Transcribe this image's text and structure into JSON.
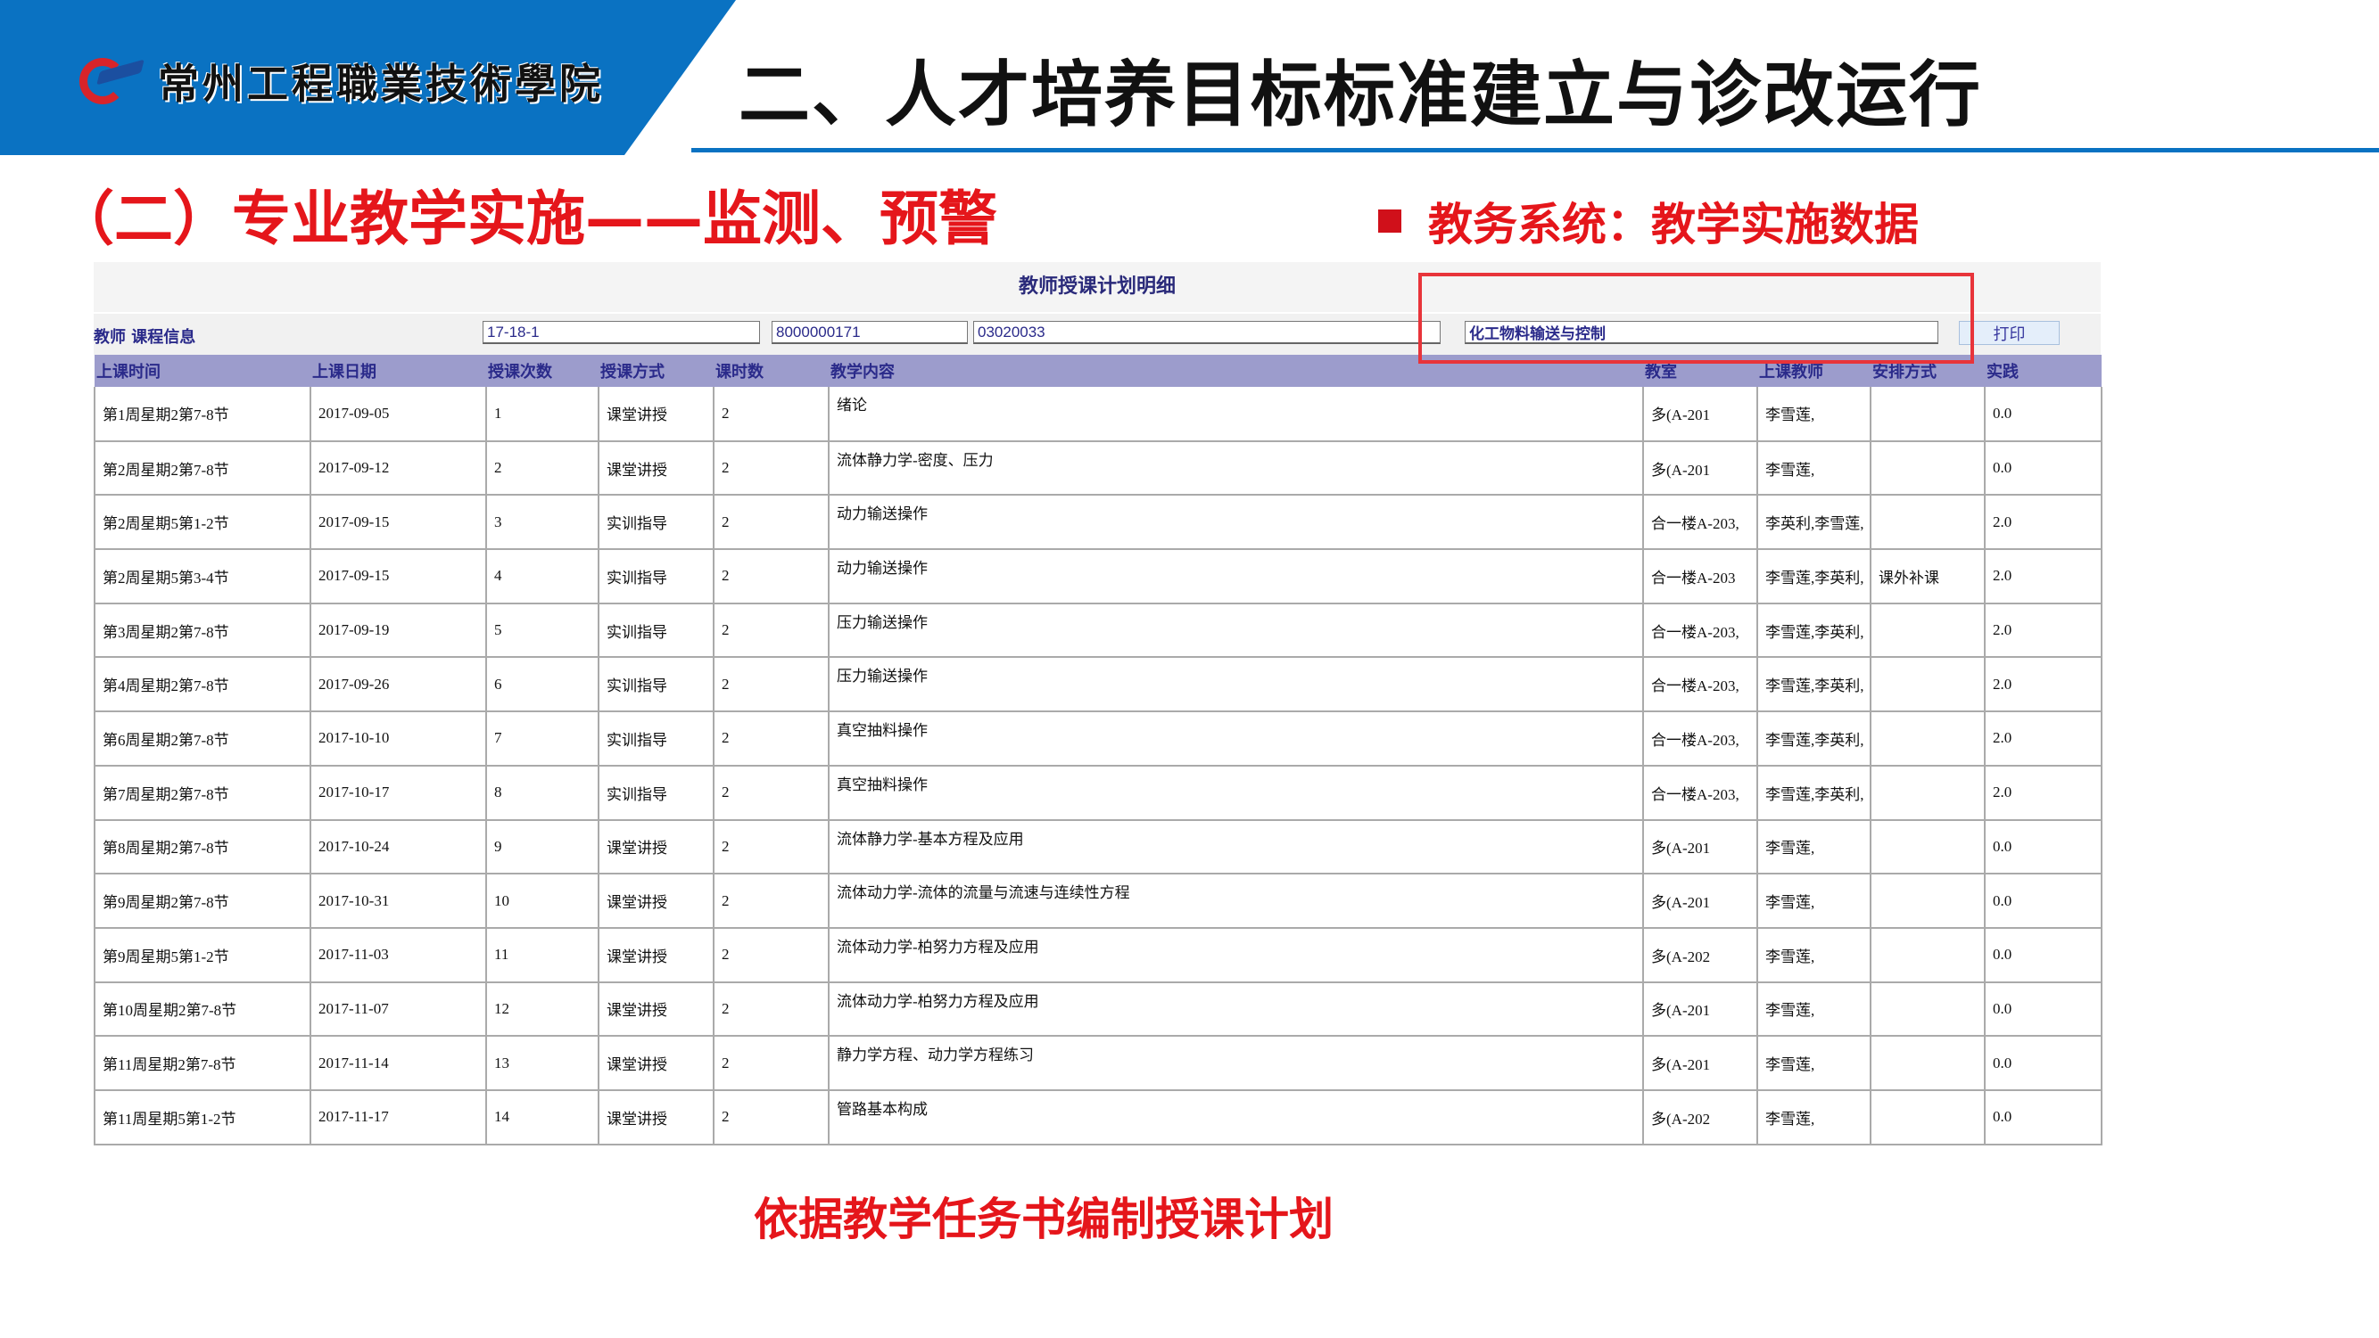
{
  "header": {
    "logo_text": "常州工程職業技術學院",
    "title": "二、人才培养目标标准建立与诊改运行"
  },
  "subtitle": "（二）专业教学实施——监测、预警",
  "side_label": "教务系统：教学实施数据",
  "colors": {
    "brand_blue": "#0a72c2",
    "accent_red": "#e5161b",
    "table_header": "#9c9ccc"
  },
  "panel": {
    "title": "教师授课计划明细",
    "info_label": "教师 课程信息",
    "term": "17-18-1",
    "teacher_id": "8000000171",
    "course_code": "03020033",
    "course_name": "化工物料输送与控制",
    "print_label": "打印"
  },
  "table": {
    "headers": [
      "上课时间",
      "上课日期",
      "授课次数",
      "授课方式",
      "课时数",
      "教学内容",
      "教室",
      "上课教师",
      "安排方式",
      "实践"
    ],
    "rows": [
      [
        "第1周星期2第7-8节",
        "2017-09-05",
        "1",
        "课堂讲授",
        "2",
        "绪论",
        "多(A-201",
        "李雪莲,",
        "",
        "0.0"
      ],
      [
        "第2周星期2第7-8节",
        "2017-09-12",
        "2",
        "课堂讲授",
        "2",
        "流体静力学-密度、压力",
        "多(A-201",
        "李雪莲,",
        "",
        "0.0"
      ],
      [
        "第2周星期5第1-2节",
        "2017-09-15",
        "3",
        "实训指导",
        "2",
        "动力输送操作",
        "合一楼A-203,",
        "李英利,李雪莲,",
        "",
        "2.0"
      ],
      [
        "第2周星期5第3-4节",
        "2017-09-15",
        "4",
        "实训指导",
        "2",
        "动力输送操作",
        "合一楼A-203",
        "李雪莲,李英利,",
        "课外补课",
        "2.0"
      ],
      [
        "第3周星期2第7-8节",
        "2017-09-19",
        "5",
        "实训指导",
        "2",
        "压力输送操作",
        "合一楼A-203,",
        "李雪莲,李英利,",
        "",
        "2.0"
      ],
      [
        "第4周星期2第7-8节",
        "2017-09-26",
        "6",
        "实训指导",
        "2",
        "压力输送操作",
        "合一楼A-203,",
        "李雪莲,李英利,",
        "",
        "2.0"
      ],
      [
        "第6周星期2第7-8节",
        "2017-10-10",
        "7",
        "实训指导",
        "2",
        "真空抽料操作",
        "合一楼A-203,",
        "李雪莲,李英利,",
        "",
        "2.0"
      ],
      [
        "第7周星期2第7-8节",
        "2017-10-17",
        "8",
        "实训指导",
        "2",
        "真空抽料操作",
        "合一楼A-203,",
        "李雪莲,李英利,",
        "",
        "2.0"
      ],
      [
        "第8周星期2第7-8节",
        "2017-10-24",
        "9",
        "课堂讲授",
        "2",
        "流体静力学-基本方程及应用",
        "多(A-201",
        "李雪莲,",
        "",
        "0.0"
      ],
      [
        "第9周星期2第7-8节",
        "2017-10-31",
        "10",
        "课堂讲授",
        "2",
        "流体动力学-流体的流量与流速与连续性方程",
        "多(A-201",
        "李雪莲,",
        "",
        "0.0"
      ],
      [
        "第9周星期5第1-2节",
        "2017-11-03",
        "11",
        "课堂讲授",
        "2",
        "流体动力学-柏努力方程及应用",
        "多(A-202",
        "李雪莲,",
        "",
        "0.0"
      ],
      [
        "第10周星期2第7-8节",
        "2017-11-07",
        "12",
        "课堂讲授",
        "2",
        "流体动力学-柏努力方程及应用",
        "多(A-201",
        "李雪莲,",
        "",
        "0.0"
      ],
      [
        "第11周星期2第7-8节",
        "2017-11-14",
        "13",
        "课堂讲授",
        "2",
        "静力学方程、动力学方程练习",
        "多(A-201",
        "李雪莲,",
        "",
        "0.0"
      ],
      [
        "第11周星期5第1-2节",
        "2017-11-17",
        "14",
        "课堂讲授",
        "2",
        "管路基本构成",
        "多(A-202",
        "李雪莲,",
        "",
        "0.0"
      ]
    ]
  },
  "note": "依据教学任务书编制授课计划"
}
